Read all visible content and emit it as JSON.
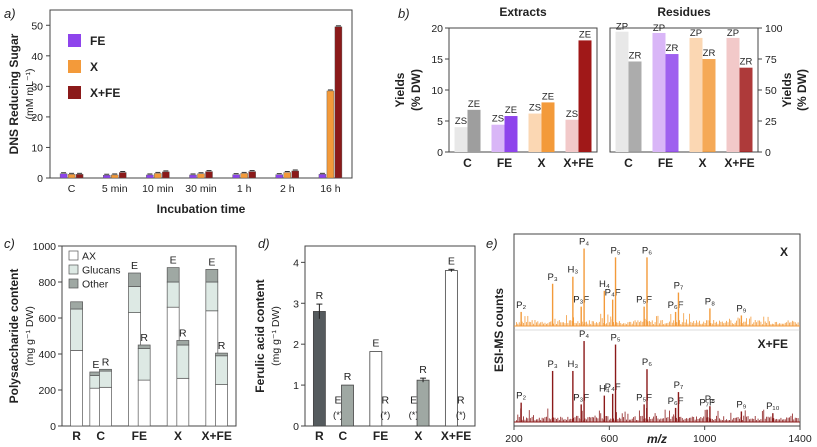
{
  "chart_data": [
    {
      "panel": "a)",
      "type": "bar",
      "xlabel": "Incubation time",
      "ylabel": "DNS Reducing Sugar",
      "ylabel_units": "(mM mL⁻¹)",
      "categories": [
        "C",
        "5 min",
        "10 min",
        "30 min",
        "1 h",
        "2 h",
        "16 h"
      ],
      "yticks": [
        0,
        10,
        20,
        30,
        40,
        50
      ],
      "ylim": [
        0,
        55
      ],
      "series": [
        {
          "name": "FE",
          "color": "#8e44ec",
          "values": [
            1.4,
            0.9,
            1.0,
            1.0,
            1.1,
            1.1,
            1.2
          ]
        },
        {
          "name": "X",
          "color": "#f39a3a",
          "values": [
            1.2,
            1.0,
            1.5,
            1.4,
            1.5,
            1.8,
            28.5
          ]
        },
        {
          "name": "X+FE",
          "color": "#8b1a1a",
          "values": [
            1.2,
            1.8,
            2.0,
            2.1,
            2.1,
            2.3,
            49.5
          ]
        }
      ]
    },
    {
      "panel": "b)",
      "type": "bar",
      "title_left": "Extracts",
      "title_right": "Residues",
      "ylabel_left": "Yields",
      "ylabel_left_units": "(% DW)",
      "ylabel_right": "Yields",
      "ylabel_right_units": "(% DW)",
      "categories": [
        "C",
        "FE",
        "X",
        "X+FE"
      ],
      "extracts": {
        "ylim": [
          0,
          20
        ],
        "yticks": [
          0,
          5,
          10,
          15,
          20
        ],
        "ZS": [
          4.0,
          4.4,
          6.2,
          5.2
        ],
        "ZE": [
          6.8,
          5.8,
          8.0,
          18.0
        ]
      },
      "residues": {
        "ylim": [
          0,
          100
        ],
        "yticks": [
          0,
          25,
          50,
          75,
          100
        ],
        "ZP": [
          97,
          96,
          92,
          92
        ],
        "ZR": [
          73,
          79,
          75,
          68
        ]
      }
    },
    {
      "panel": "c)",
      "type": "bar",
      "stacked": true,
      "ylabel": "Polysaccharide content",
      "ylabel_units": "(mg g⁻¹ DW)",
      "categories": [
        "R",
        "C",
        "FE",
        "X",
        "X+FE"
      ],
      "yticks": [
        0,
        200,
        400,
        600,
        800,
        1000
      ],
      "ylim": [
        0,
        1000
      ],
      "legend": [
        "AX",
        "Glucans",
        "Other"
      ],
      "bars": [
        {
          "group": "R",
          "tag": "",
          "AX": 420,
          "Glucans": 230,
          "Other": 40
        },
        {
          "group": "C",
          "tag": "E",
          "AX": 210,
          "Glucans": 70,
          "Other": 20
        },
        {
          "group": "C",
          "tag": "R",
          "AX": 215,
          "Glucans": 90,
          "Other": 10
        },
        {
          "group": "FE",
          "tag": "E",
          "AX": 630,
          "Glucans": 145,
          "Other": 75
        },
        {
          "group": "FE",
          "tag": "R",
          "AX": 255,
          "Glucans": 175,
          "Other": 20
        },
        {
          "group": "X",
          "tag": "E",
          "AX": 660,
          "Glucans": 140,
          "Other": 80
        },
        {
          "group": "X",
          "tag": "R",
          "AX": 265,
          "Glucans": 185,
          "Other": 25
        },
        {
          "group": "X+FE",
          "tag": "E",
          "AX": 640,
          "Glucans": 160,
          "Other": 70
        },
        {
          "group": "X+FE",
          "tag": "R",
          "AX": 230,
          "Glucans": 160,
          "Other": 15
        }
      ]
    },
    {
      "panel": "d)",
      "type": "bar",
      "ylabel": "Ferulic acid content",
      "ylabel_units": "(mg g⁻¹ DW)",
      "categories": [
        "R",
        "C",
        "FE",
        "X",
        "X+FE"
      ],
      "yticks": [
        0,
        1,
        2,
        3,
        4
      ],
      "ylim": [
        0,
        4.4
      ],
      "note": "(*)",
      "bars": [
        {
          "group": "R",
          "tag": "R",
          "value": 2.8,
          "error": 0.18
        },
        {
          "group": "C",
          "tag": "E",
          "value": 0,
          "note": true
        },
        {
          "group": "C",
          "tag": "R",
          "value": 1.0
        },
        {
          "group": "FE",
          "tag": "E",
          "value": 1.82
        },
        {
          "group": "FE",
          "tag": "R",
          "value": 0,
          "note": true
        },
        {
          "group": "X",
          "tag": "E",
          "value": 0,
          "note": true
        },
        {
          "group": "X",
          "tag": "R",
          "value": 1.12,
          "error": 0.05
        },
        {
          "group": "X+FE",
          "tag": "E",
          "value": 3.8,
          "error": 0.03
        },
        {
          "group": "X+FE",
          "tag": "R",
          "value": 0,
          "note": true
        }
      ]
    },
    {
      "panel": "e)",
      "type": "line",
      "xlabel": "m/z",
      "ylabel": "ESI-MS counts",
      "xlim": [
        200,
        1400
      ],
      "xticks": [
        200,
        600,
        1000,
        1400
      ],
      "series": [
        {
          "name": "X",
          "color": "#f39a3a",
          "peaks": [
            {
              "x": 230,
              "h": 0.16,
              "label": "P₂"
            },
            {
              "x": 362,
              "h": 0.48,
              "label": "P₃"
            },
            {
              "x": 447,
              "h": 0.56,
              "label": "H₃"
            },
            {
              "x": 482,
              "h": 0.22,
              "label": "P₃F"
            },
            {
              "x": 494,
              "h": 0.88,
              "label": "P₄"
            },
            {
              "x": 579,
              "h": 0.4,
              "label": "H₄"
            },
            {
              "x": 614,
              "h": 0.3,
              "label": "P₄F"
            },
            {
              "x": 626,
              "h": 0.78,
              "label": "P₅"
            },
            {
              "x": 746,
              "h": 0.22,
              "label": "P₅F"
            },
            {
              "x": 758,
              "h": 0.78,
              "label": "P₆"
            },
            {
              "x": 878,
              "h": 0.16,
              "label": "P₆F"
            },
            {
              "x": 890,
              "h": 0.38,
              "label": "P₇"
            },
            {
              "x": 1022,
              "h": 0.2,
              "label": "P₈"
            },
            {
              "x": 1154,
              "h": 0.12,
              "label": "P₉"
            }
          ]
        },
        {
          "name": "X+FE",
          "color": "#8b1a1a",
          "peaks": [
            {
              "x": 230,
              "h": 0.22,
              "label": "P₂"
            },
            {
              "x": 362,
              "h": 0.58,
              "label": "P₃"
            },
            {
              "x": 447,
              "h": 0.58,
              "label": "H₃"
            },
            {
              "x": 482,
              "h": 0.2,
              "label": "P₃F"
            },
            {
              "x": 494,
              "h": 0.92,
              "label": "P₄"
            },
            {
              "x": 579,
              "h": 0.3,
              "label": "H₄"
            },
            {
              "x": 614,
              "h": 0.32,
              "label": "P₄F"
            },
            {
              "x": 626,
              "h": 0.88,
              "label": "P₅"
            },
            {
              "x": 746,
              "h": 0.2,
              "label": "P₅F"
            },
            {
              "x": 758,
              "h": 0.6,
              "label": "P₆"
            },
            {
              "x": 878,
              "h": 0.16,
              "label": "P₆F"
            },
            {
              "x": 890,
              "h": 0.34,
              "label": "P₇"
            },
            {
              "x": 1010,
              "h": 0.14,
              "label": "P₇F"
            },
            {
              "x": 1022,
              "h": 0.18,
              "label": "P₈"
            },
            {
              "x": 1154,
              "h": 0.12,
              "label": "P₉"
            },
            {
              "x": 1286,
              "h": 0.1,
              "label": "P₁₀"
            }
          ]
        }
      ]
    }
  ]
}
